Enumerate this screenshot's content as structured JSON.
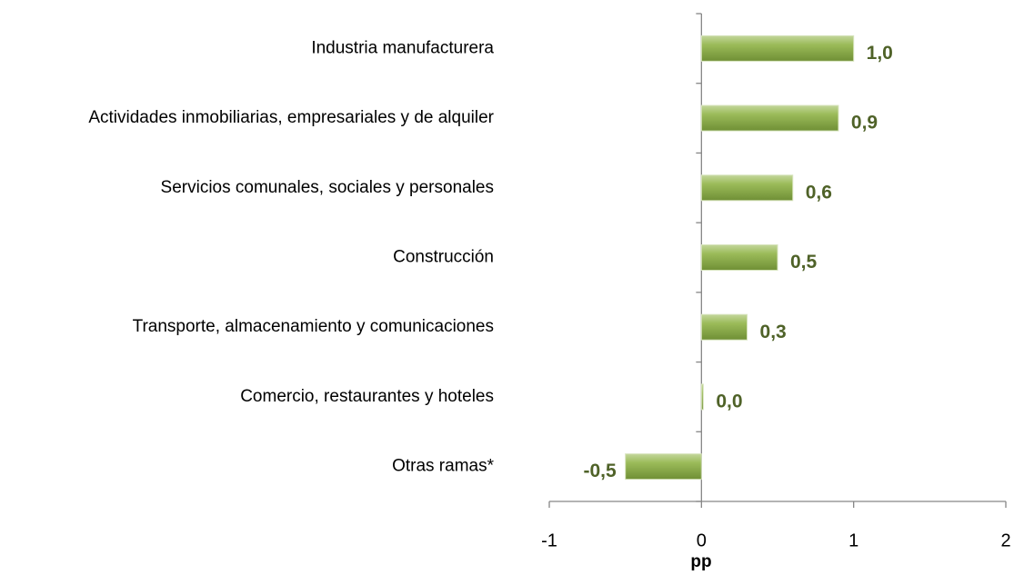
{
  "chart_data": {
    "type": "bar",
    "orientation": "horizontal",
    "categories": [
      "Industria manufacturera",
      "Actividades inmobiliarias, empresariales y de alquiler",
      "Servicios comunales, sociales y personales",
      "Construcción",
      "Transporte, almacenamiento y comunicaciones",
      "Comercio, restaurantes y hoteles",
      "Otras ramas*"
    ],
    "values": [
      1.0,
      0.9,
      0.6,
      0.5,
      0.3,
      0.0,
      -0.5
    ],
    "value_labels": [
      "1,0",
      "0,9",
      "0,6",
      "0,5",
      "0,3",
      "0,0",
      "-0,5"
    ],
    "color": "#8cb04a",
    "xlim": [
      -1,
      2
    ],
    "xticks": [
      -1,
      0,
      1,
      2
    ],
    "x_label": "pp",
    "grid": false
  }
}
